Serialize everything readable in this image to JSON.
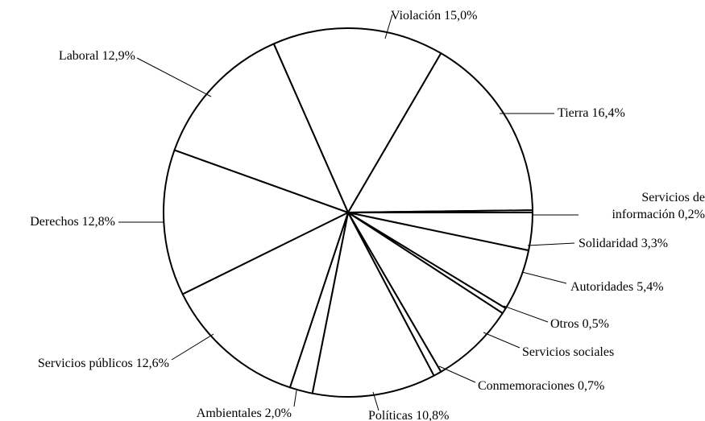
{
  "chart_data": {
    "type": "pie",
    "categories": [
      "Violación",
      "Tierra",
      "Servicios de información",
      "Solidaridad",
      "Autoridades",
      "Otros",
      "Servicios sociales",
      "Conmemoraciones",
      "Políticas",
      "Ambientales",
      "Servicios públicos",
      "Derechos",
      "Laboral"
    ],
    "values": [
      15.0,
      16.4,
      0.2,
      3.3,
      5.4,
      0.5,
      7.4,
      0.7,
      10.8,
      2.0,
      12.6,
      12.8,
      12.9
    ],
    "value_labels": [
      "15,0%",
      "16,4%",
      "0,2%",
      "3,3%",
      "5,4%",
      "0,5%",
      null,
      "0,7%",
      "10,8%",
      "2,0%",
      "12,6%",
      "12,8%",
      "12,9%"
    ],
    "color": "#ffffff",
    "edge_color": "#000000"
  }
}
